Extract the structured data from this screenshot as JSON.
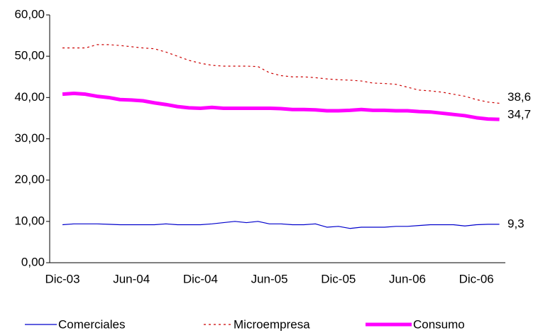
{
  "chart_data": {
    "type": "line",
    "categories": [
      "Dic-03",
      null,
      null,
      null,
      null,
      null,
      "Jun-04",
      null,
      null,
      null,
      null,
      null,
      "Dic-04",
      null,
      null,
      null,
      null,
      null,
      "Jun-05",
      null,
      null,
      null,
      null,
      null,
      "Dic-05",
      null,
      null,
      null,
      null,
      null,
      "Jun-06",
      null,
      null,
      null,
      null,
      null,
      "Dic-06",
      null,
      null
    ],
    "series": [
      {
        "name": "Comerciales",
        "color": "#0000cc",
        "line_style": "solid",
        "line_width": 1.2,
        "values": [
          9.2,
          9.4,
          9.4,
          9.4,
          9.3,
          9.2,
          9.2,
          9.2,
          9.2,
          9.4,
          9.2,
          9.2,
          9.2,
          9.4,
          9.7,
          10.0,
          9.7,
          10.0,
          9.4,
          9.4,
          9.2,
          9.2,
          9.4,
          8.6,
          8.8,
          8.3,
          8.6,
          8.6,
          8.6,
          8.8,
          8.8,
          9.0,
          9.2,
          9.2,
          9.2,
          8.9,
          9.2,
          9.3,
          9.3
        ],
        "value_labels": [
          null,
          null,
          null,
          null,
          null,
          null,
          null,
          null,
          null,
          null,
          null,
          null,
          null,
          null,
          null,
          null,
          null,
          null,
          null,
          null,
          null,
          null,
          null,
          null,
          null,
          null,
          null,
          null,
          null,
          null,
          null,
          null,
          null,
          null,
          null,
          null,
          null,
          null,
          "9,3"
        ]
      },
      {
        "name": "Microempresa",
        "color": "#cc0000",
        "line_style": "dotted",
        "line_width": 1.2,
        "values": [
          52,
          52,
          52,
          52.8,
          52.8,
          52.6,
          52.3,
          52.0,
          51.8,
          51.0,
          50.0,
          49.0,
          48.3,
          47.8,
          47.6,
          47.6,
          47.6,
          47.5,
          46.0,
          45.3,
          45.0,
          45.0,
          44.8,
          44.5,
          44.3,
          44.2,
          44.0,
          43.5,
          43.4,
          43.2,
          42.5,
          41.8,
          41.6,
          41.3,
          40.8,
          40.3,
          39.5,
          38.9,
          38.6
        ],
        "value_labels": [
          null,
          null,
          null,
          null,
          null,
          null,
          null,
          null,
          null,
          null,
          null,
          null,
          null,
          null,
          null,
          null,
          null,
          null,
          null,
          null,
          null,
          null,
          null,
          null,
          null,
          null,
          null,
          null,
          null,
          null,
          null,
          null,
          null,
          null,
          null,
          null,
          null,
          null,
          "38,6"
        ]
      },
      {
        "name": "Consumo",
        "color": "#ff00ff",
        "line_style": "solid",
        "line_width": 5,
        "values": [
          40.8,
          41.0,
          40.8,
          40.3,
          40.0,
          39.5,
          39.4,
          39.2,
          38.7,
          38.3,
          37.8,
          37.5,
          37.4,
          37.6,
          37.4,
          37.4,
          37.4,
          37.4,
          37.4,
          37.3,
          37.1,
          37.1,
          37.0,
          36.8,
          36.8,
          36.9,
          37.1,
          36.9,
          36.9,
          36.8,
          36.8,
          36.6,
          36.5,
          36.2,
          35.9,
          35.6,
          35.1,
          34.8,
          34.7
        ],
        "value_labels": [
          null,
          null,
          null,
          null,
          null,
          null,
          null,
          null,
          null,
          null,
          null,
          null,
          null,
          null,
          null,
          null,
          null,
          null,
          null,
          null,
          null,
          null,
          null,
          null,
          null,
          null,
          null,
          null,
          null,
          null,
          null,
          null,
          null,
          null,
          null,
          null,
          null,
          null,
          "34,7"
        ]
      }
    ],
    "ylim": [
      0,
      60
    ],
    "yticks": [
      {
        "value": 0,
        "label": "0,00"
      },
      {
        "value": 10,
        "label": "10,00"
      },
      {
        "value": 20,
        "label": "20,00"
      },
      {
        "value": 30,
        "label": "30,00"
      },
      {
        "value": 40,
        "label": "40,00"
      },
      {
        "value": 50,
        "label": "50,00"
      },
      {
        "value": 60,
        "label": "60,00"
      }
    ],
    "grid": false
  }
}
